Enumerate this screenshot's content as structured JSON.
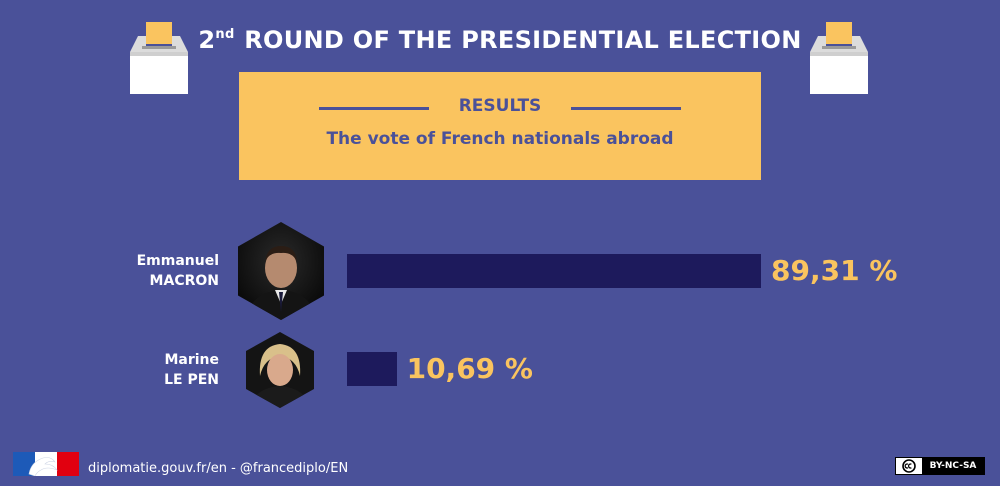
{
  "header": {
    "title_ordinal_num": "2",
    "title_ordinal_suffix": "nd",
    "title_rest": " ROUND OF THE PRESIDENTIAL ELECTION"
  },
  "banner": {
    "label": "RESULTS",
    "subtitle": "The vote of French nationals abroad"
  },
  "chart_data": {
    "type": "bar",
    "orientation": "horizontal",
    "categories": [
      "Emmanuel MACRON",
      "Marine LE PEN"
    ],
    "values": [
      89.31,
      10.69
    ],
    "value_labels": [
      "89,31 %",
      "10,69 %"
    ],
    "name_lines": [
      [
        "Emmanuel",
        "MACRON"
      ],
      [
        "Marine",
        "LE PEN"
      ]
    ],
    "xlim": [
      0,
      100
    ],
    "grid": false,
    "legend": "none"
  },
  "footer": {
    "text": "diplomatie.gouv.fr/en - @francediplo/EN",
    "license_label": "BY-NC-SA"
  },
  "colors": {
    "background": "#4a5199",
    "accent": "#fac45f",
    "bar": "#1d1a5c"
  },
  "icons": [
    "ballot-box-icon",
    "candidate-photo",
    "french-republic-flag-icon",
    "creative-commons-icon"
  ]
}
